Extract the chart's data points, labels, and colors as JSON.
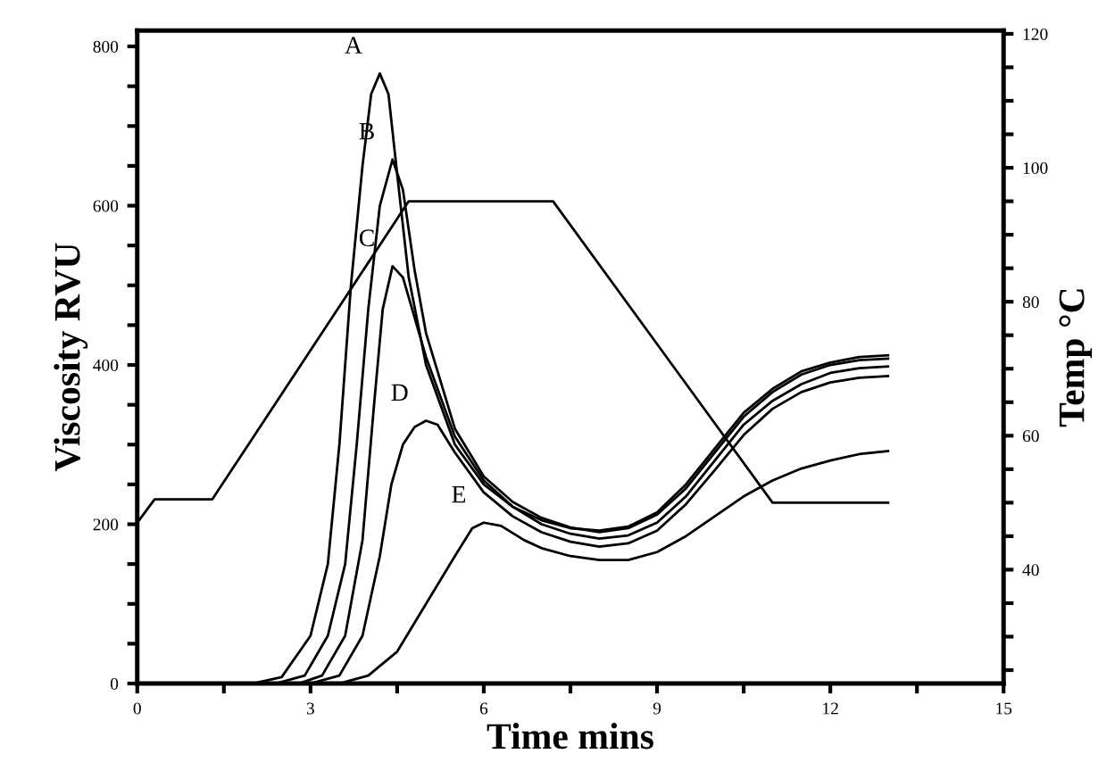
{
  "chart_data": {
    "type": "line",
    "xlabel": "Time mins",
    "ylabel": "Viscosity RVU",
    "y2label": "Temp °C",
    "grid": false,
    "legend": false,
    "marker": "none",
    "line_style": "solid",
    "xlim": [
      0,
      15
    ],
    "xticks": [
      0,
      {
        "value": 1.5,
        "label": null
      },
      3,
      {
        "value": 4.5,
        "label": null
      },
      6,
      {
        "value": 7.5,
        "label": null
      },
      9,
      {
        "value": 10.5,
        "label": null
      },
      12,
      {
        "value": 13.5,
        "label": null
      },
      15
    ],
    "ylim": [
      0,
      820
    ],
    "yticks": [
      0,
      {
        "value": 50,
        "label": null
      },
      {
        "value": 100,
        "label": null
      },
      {
        "value": 150,
        "label": null
      },
      200,
      {
        "value": 250,
        "label": null
      },
      {
        "value": 300,
        "label": null
      },
      {
        "value": 350,
        "label": null
      },
      400,
      {
        "value": 450,
        "label": null
      },
      {
        "value": 500,
        "label": null
      },
      {
        "value": 550,
        "label": null
      },
      600,
      {
        "value": 650,
        "label": null
      },
      {
        "value": 700,
        "label": null
      },
      {
        "value": 750,
        "label": null
      },
      800
    ],
    "y2lim": [
      23,
      120.5
    ],
    "y2ticks": [
      {
        "value": 25,
        "label": null
      },
      {
        "value": 30,
        "label": null
      },
      {
        "value": 35,
        "label": null
      },
      40,
      {
        "value": 45,
        "label": null
      },
      {
        "value": 50,
        "label": null
      },
      {
        "value": 55,
        "label": null
      },
      60,
      {
        "value": 65,
        "label": null
      },
      {
        "value": 70,
        "label": null
      },
      {
        "value": 75,
        "label": null
      },
      80,
      {
        "value": 85,
        "label": null
      },
      {
        "value": 90,
        "label": null
      },
      {
        "value": 95,
        "label": null
      },
      100,
      {
        "value": 105,
        "label": null
      },
      {
        "value": 110,
        "label": null
      },
      {
        "value": 115,
        "label": null
      },
      120
    ],
    "series": [
      {
        "color": "#000000",
        "x": [
          0,
          2.0,
          2.5,
          3.0,
          3.3,
          3.5,
          3.7,
          3.9,
          4.05,
          4.2,
          4.35,
          4.5,
          4.7,
          5.0,
          5.5,
          6.0,
          6.5,
          7.0,
          7.5,
          8.0,
          8.5,
          9.0,
          9.5,
          10.0,
          10.5,
          11.0,
          11.5,
          12.0,
          12.5,
          13
        ],
        "values": [
          0,
          0,
          8,
          60,
          150,
          300,
          500,
          650,
          740,
          766,
          740,
          640,
          510,
          400,
          300,
          250,
          222,
          205,
          195,
          192,
          197,
          215,
          250,
          295,
          340,
          370,
          392,
          403,
          410,
          412
        ]
      },
      {
        "color": "#000000",
        "x": [
          0,
          2.4,
          2.9,
          3.3,
          3.6,
          3.8,
          4.0,
          4.2,
          4.42,
          4.6,
          4.8,
          5.0,
          5.5,
          6,
          6.5,
          7,
          7.5,
          8,
          8.5,
          9,
          9.5,
          10,
          10.5,
          11,
          11.5,
          12,
          12.5,
          13
        ],
        "values": [
          0,
          0,
          10,
          60,
          150,
          300,
          470,
          600,
          658,
          620,
          520,
          440,
          320,
          260,
          228,
          208,
          196,
          190,
          195,
          212,
          245,
          290,
          335,
          366,
          388,
          400,
          406,
          408
        ]
      },
      {
        "color": "#000000",
        "x": [
          0,
          2.8,
          3.2,
          3.6,
          3.9,
          4.1,
          4.25,
          4.42,
          4.6,
          4.8,
          5.0,
          5.5,
          6,
          6.5,
          7,
          7.5,
          8,
          8.5,
          9,
          9.5,
          10,
          10.5,
          11,
          11.5,
          12,
          12.5,
          13
        ],
        "values": [
          0,
          0,
          10,
          60,
          180,
          350,
          470,
          524,
          510,
          460,
          410,
          310,
          255,
          222,
          200,
          188,
          182,
          186,
          202,
          235,
          280,
          325,
          355,
          376,
          390,
          396,
          398
        ]
      },
      {
        "color": "#000000",
        "x": [
          0,
          3.0,
          3.5,
          3.9,
          4.2,
          4.4,
          4.6,
          4.8,
          5.0,
          5.2,
          5.5,
          6,
          6.5,
          7,
          7.5,
          8,
          8.5,
          9,
          9.5,
          10,
          10.5,
          11,
          11.5,
          12,
          12.5,
          13
        ],
        "values": [
          0,
          0,
          10,
          60,
          160,
          250,
          300,
          322,
          330,
          325,
          290,
          240,
          210,
          190,
          178,
          172,
          176,
          192,
          225,
          268,
          312,
          345,
          366,
          378,
          384,
          386
        ]
      },
      {
        "color": "#000000",
        "x": [
          0,
          3.5,
          4.0,
          4.5,
          5.0,
          5.5,
          5.8,
          6.0,
          6.3,
          6.7,
          7,
          7.5,
          8,
          8.5,
          9,
          9.5,
          10,
          10.5,
          11,
          11.5,
          12,
          12.5,
          13
        ],
        "values": [
          0,
          0,
          10,
          40,
          100,
          160,
          195,
          202,
          198,
          180,
          170,
          160,
          155,
          155,
          165,
          185,
          210,
          235,
          255,
          270,
          280,
          288,
          292
        ]
      },
      {
        "color": "#000000",
        "axis": "y2",
        "x": [
          0,
          0.3,
          1.3,
          4.7,
          7.2,
          11.0,
          13.0
        ],
        "values": [
          47,
          50.5,
          50.5,
          95,
          95,
          50,
          50
        ]
      }
    ],
    "annotations": [
      {
        "text": "A",
        "x": 4.2,
        "y": 766
      },
      {
        "text": "B",
        "x": 4.42,
        "y": 658
      },
      {
        "text": "C",
        "x": 4.42,
        "y": 524
      },
      {
        "text": "D",
        "x": 5.0,
        "y": 330
      },
      {
        "text": "E",
        "x": 6.0,
        "y": 202
      }
    ]
  }
}
